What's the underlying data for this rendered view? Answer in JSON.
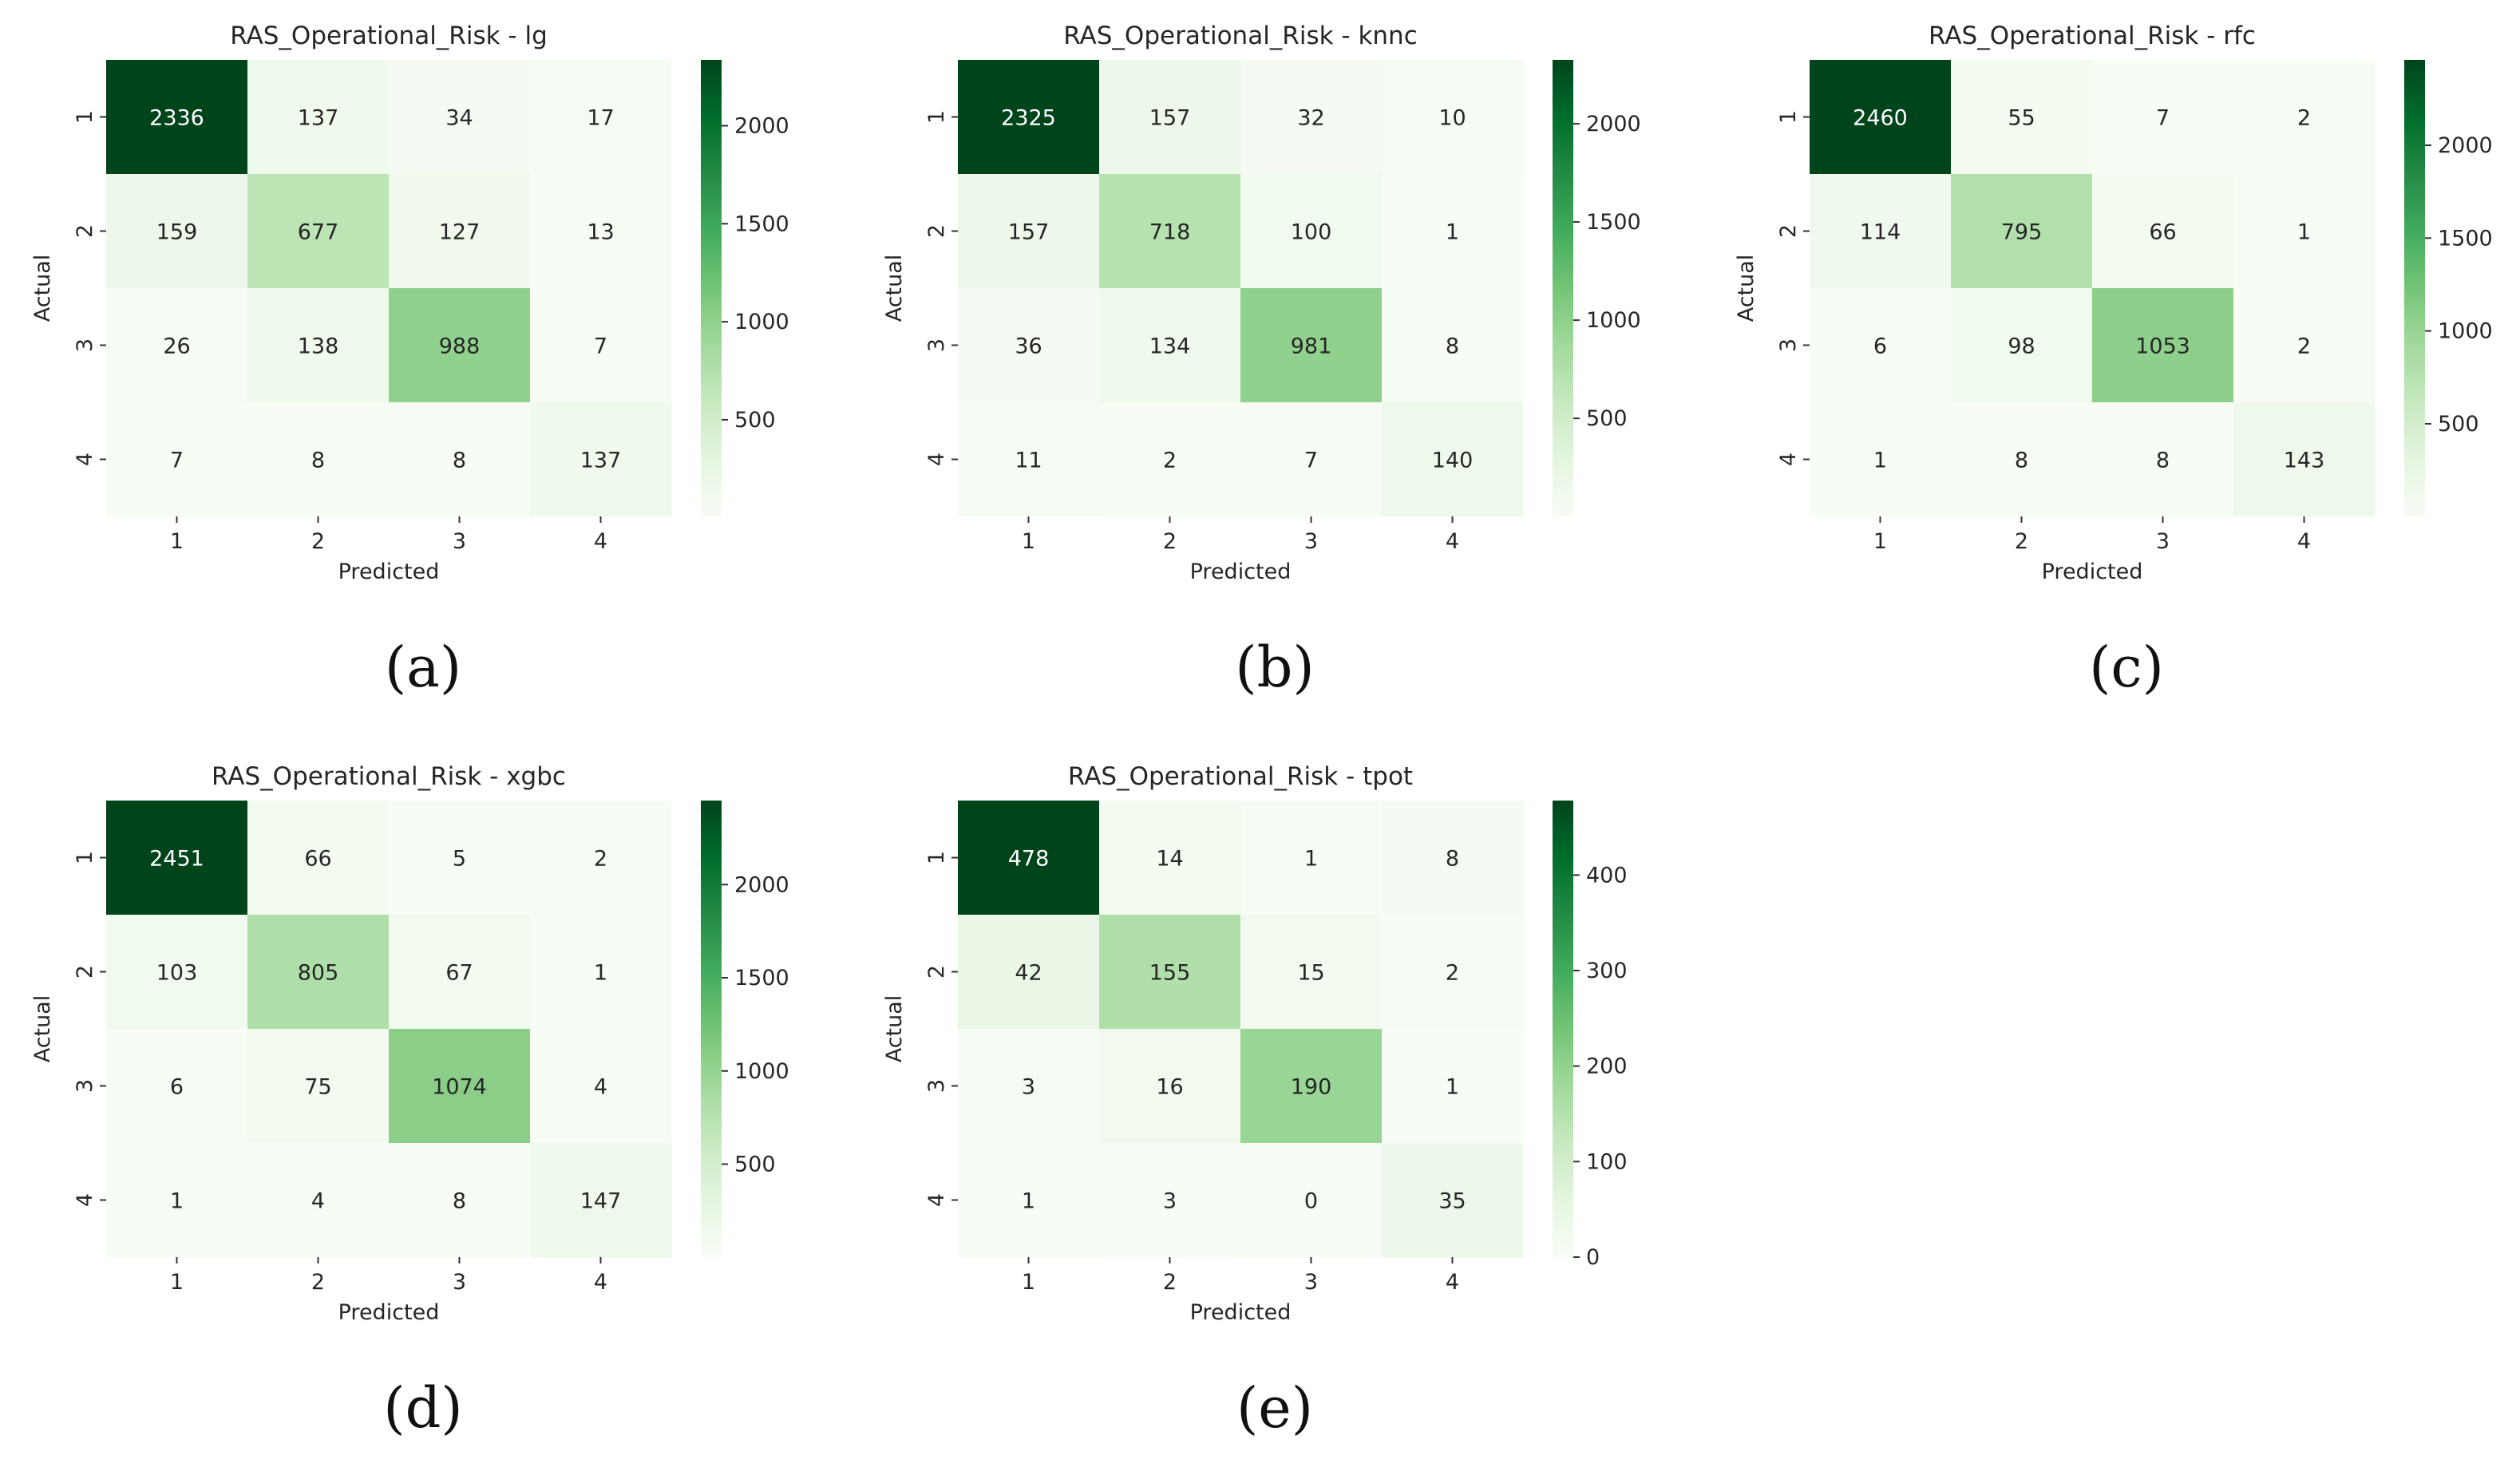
{
  "chart_data": [
    {
      "type": "heatmap",
      "title": "RAS_Operational_Risk - lg",
      "caption": "(a)",
      "xlabel": "Predicted",
      "ylabel": "Actual",
      "x_categories": [
        "1",
        "2",
        "3",
        "4"
      ],
      "y_categories": [
        "1",
        "2",
        "3",
        "4"
      ],
      "values": [
        [
          2336,
          137,
          34,
          17
        ],
        [
          159,
          677,
          127,
          13
        ],
        [
          26,
          138,
          988,
          7
        ],
        [
          7,
          8,
          8,
          137
        ]
      ],
      "colorbar": {
        "range": [
          7,
          2336
        ],
        "ticks": [
          500,
          1000,
          1500,
          2000
        ],
        "tick_labels": [
          "500",
          "1000",
          "1500",
          "2000"
        ]
      }
    },
    {
      "type": "heatmap",
      "title": "RAS_Operational_Risk - knnc",
      "caption": "(b)",
      "xlabel": "Predicted",
      "ylabel": "Actual",
      "x_categories": [
        "1",
        "2",
        "3",
        "4"
      ],
      "y_categories": [
        "1",
        "2",
        "3",
        "4"
      ],
      "values": [
        [
          2325,
          157,
          32,
          10
        ],
        [
          157,
          718,
          100,
          1
        ],
        [
          36,
          134,
          981,
          8
        ],
        [
          11,
          2,
          7,
          140
        ]
      ],
      "colorbar": {
        "range": [
          1,
          2325
        ],
        "ticks": [
          500,
          1000,
          1500,
          2000
        ],
        "tick_labels": [
          "500",
          "1000",
          "1500",
          "2000"
        ]
      }
    },
    {
      "type": "heatmap",
      "title": "RAS_Operational_Risk - rfc",
      "caption": "(c)",
      "xlabel": "Predicted",
      "ylabel": "Actual",
      "x_categories": [
        "1",
        "2",
        "3",
        "4"
      ],
      "y_categories": [
        "1",
        "2",
        "3",
        "4"
      ],
      "values": [
        [
          2460,
          55,
          7,
          2
        ],
        [
          114,
          795,
          66,
          1
        ],
        [
          6,
          98,
          1053,
          2
        ],
        [
          1,
          8,
          8,
          143
        ]
      ],
      "colorbar": {
        "range": [
          1,
          2460
        ],
        "ticks": [
          500,
          1000,
          1500,
          2000
        ],
        "tick_labels": [
          "500",
          "1000",
          "1500",
          "2000"
        ]
      }
    },
    {
      "type": "heatmap",
      "title": "RAS_Operational_Risk - xgbc",
      "caption": "(d)",
      "xlabel": "Predicted",
      "ylabel": "Actual",
      "x_categories": [
        "1",
        "2",
        "3",
        "4"
      ],
      "y_categories": [
        "1",
        "2",
        "3",
        "4"
      ],
      "values": [
        [
          2451,
          66,
          5,
          2
        ],
        [
          103,
          805,
          67,
          1
        ],
        [
          6,
          75,
          1074,
          4
        ],
        [
          1,
          4,
          8,
          147
        ]
      ],
      "colorbar": {
        "range": [
          1,
          2451
        ],
        "ticks": [
          500,
          1000,
          1500,
          2000
        ],
        "tick_labels": [
          "500",
          "1000",
          "1500",
          "2000"
        ]
      }
    },
    {
      "type": "heatmap",
      "title": "RAS_Operational_Risk - tpot",
      "caption": "(e)",
      "xlabel": "Predicted",
      "ylabel": "Actual",
      "x_categories": [
        "1",
        "2",
        "3",
        "4"
      ],
      "y_categories": [
        "1",
        "2",
        "3",
        "4"
      ],
      "values": [
        [
          478,
          14,
          1,
          8
        ],
        [
          42,
          155,
          15,
          2
        ],
        [
          3,
          16,
          190,
          1
        ],
        [
          1,
          3,
          0,
          35
        ]
      ],
      "colorbar": {
        "range": [
          0,
          478
        ],
        "ticks": [
          0,
          100,
          200,
          300,
          400
        ],
        "tick_labels": [
          "0",
          "100",
          "200",
          "300",
          "400"
        ]
      }
    }
  ],
  "colors": {
    "cmap_low": "#f7fcf5",
    "cmap_high": "#00441b",
    "text_dark": "#262626",
    "text_light": "#ffffff"
  }
}
